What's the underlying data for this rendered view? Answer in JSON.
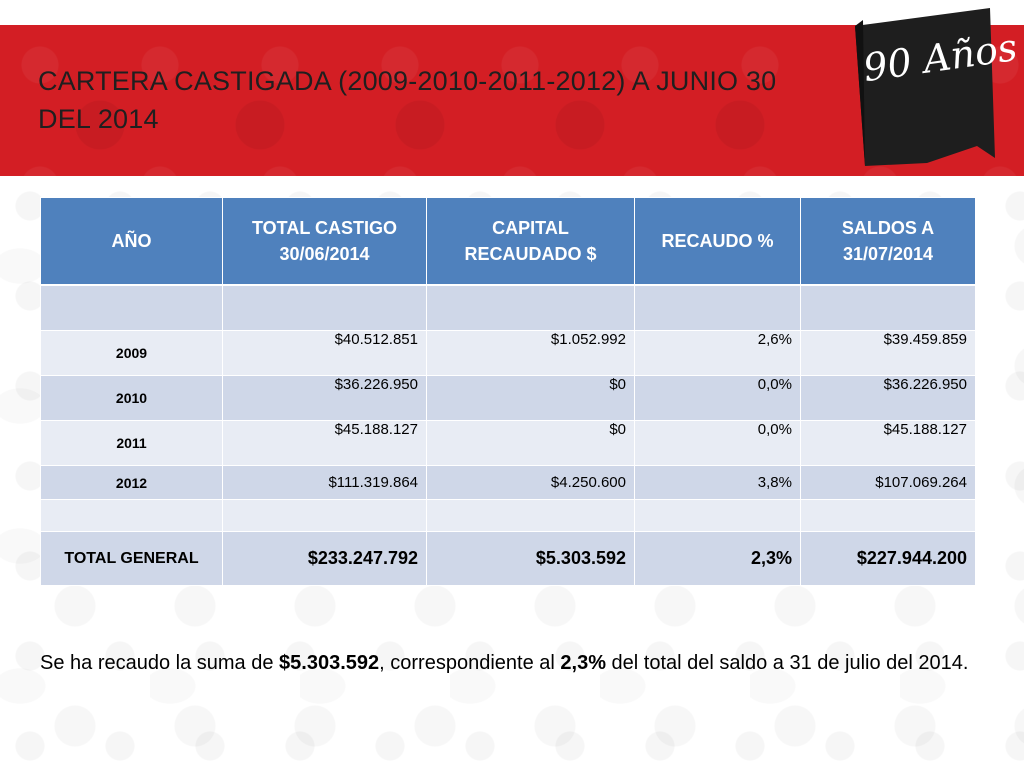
{
  "title": "CARTERA CASTIGADA (2009-2010-2011-2012) A JUNIO 30 DEL 2014",
  "badge": {
    "text": "90 Años",
    "color": "#1e1e1e",
    "icon": "ribbon-badge-icon"
  },
  "colors": {
    "header_band": "#d31e24",
    "table_header": "#4f81bd",
    "row_dark": "#cfd7e8",
    "row_light": "#e8ecf4"
  },
  "table": {
    "headers": [
      "AÑO",
      "TOTAL CASTIGO 30/06/2014",
      "CAPITAL RECAUDADO $",
      "RECAUDO %",
      "SALDOS A 31/07/2014"
    ],
    "rows": [
      {
        "year": "2009",
        "total": "$40.512.851",
        "capital": "$1.052.992",
        "recaudo": "2,6%",
        "saldo": "$39.459.859"
      },
      {
        "year": "2010",
        "total": "$36.226.950",
        "capital": "$0",
        "recaudo": "0,0%",
        "saldo": "$36.226.950"
      },
      {
        "year": "2011",
        "total": "$45.188.127",
        "capital": "$0",
        "recaudo": "0,0%",
        "saldo": "$45.188.127"
      },
      {
        "year": "2012",
        "total": "$111.319.864",
        "capital": "$4.250.600",
        "recaudo": "3,8%",
        "saldo": "$107.069.264"
      }
    ],
    "total": {
      "label": "TOTAL GENERAL",
      "total": "$233.247.792",
      "capital": "$5.303.592",
      "recaudo": "2,3%",
      "saldo": "$227.944.200"
    }
  },
  "summary": {
    "part1": "Se ha recaudo la suma de ",
    "amount": "$5.303.592",
    "part2": ", correspondiente al ",
    "percent": "2,3%",
    "part3": " del total del saldo a 31 de julio del 2014."
  }
}
